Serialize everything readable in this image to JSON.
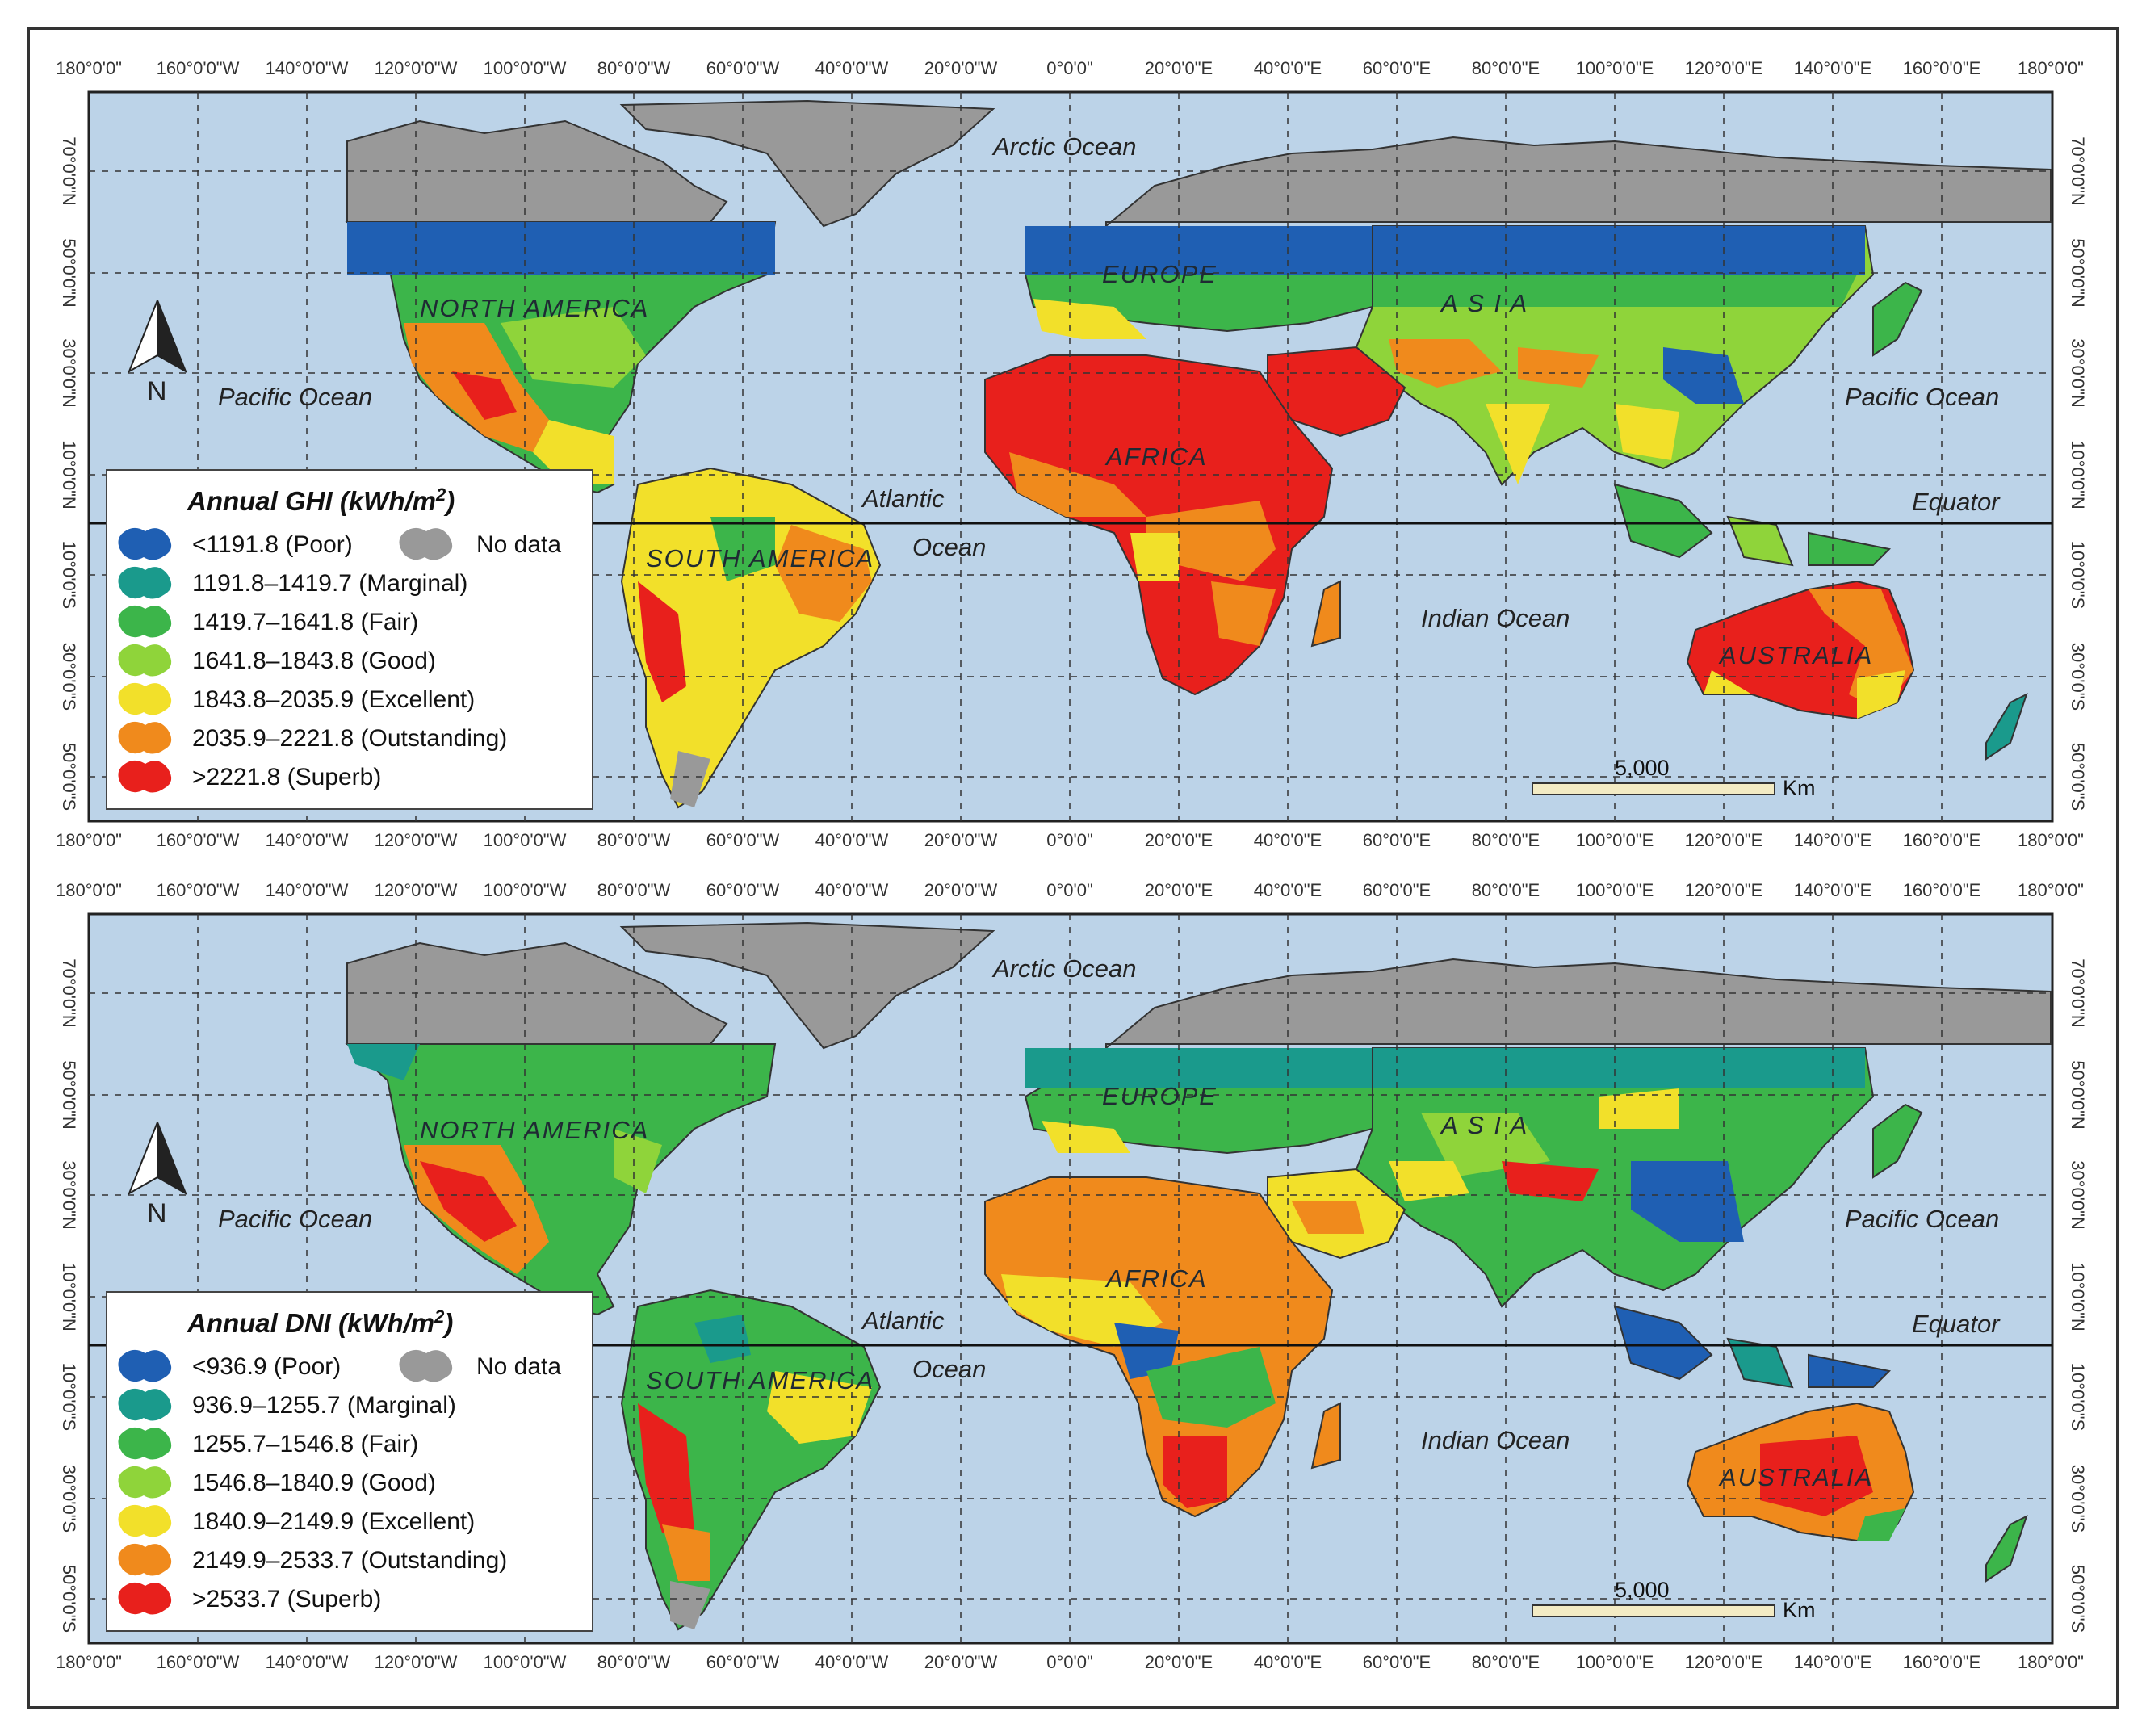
{
  "lon_ticks": [
    "180°0'0\"",
    "160°0'0\"W",
    "140°0'0\"W",
    "120°0'0\"W",
    "100°0'0\"W",
    "80°0'0\"W",
    "60°0'0\"W",
    "40°0'0\"W",
    "20°0'0\"W",
    "0°0'0\"",
    "20°0'0\"E",
    "40°0'0\"E",
    "60°0'0\"E",
    "80°0'0\"E",
    "100°0'0\"E",
    "120°0'0\"E",
    "140°0'0\"E",
    "160°0'0\"E",
    "180°0'0\""
  ],
  "lat_ticks": [
    "70°0'0\"N",
    "50°0'0\"N",
    "30°0'0\"N",
    "10°0'0\"N",
    "10°0'0\"S",
    "30°0'0\"S",
    "50°0'0\"S"
  ],
  "colors": {
    "ocean": "#bcd3e8",
    "no_data": "#999999",
    "poor": "#1f5fb3",
    "marginal": "#1a9a8c",
    "fair": "#3cb54a",
    "good": "#8fd43a",
    "excellent": "#f2e02a",
    "outstanding": "#f08a1c",
    "superb": "#e8201c"
  },
  "labels": {
    "arctic": "Arctic Ocean",
    "pacific_w": "Pacific Ocean",
    "pacific_e": "Pacific Ocean",
    "atlantic1": "Atlantic",
    "atlantic2": "Ocean",
    "indian": "Indian Ocean",
    "equator": "Equator",
    "north_america": "NORTH AMERICA",
    "south_america": "SOUTH AMERICA",
    "europe": "EUROPE",
    "asia": "A S I A",
    "africa": "AFRICA",
    "australia": "AUSTRALIA",
    "north": "N"
  },
  "scale_bar": {
    "value": "5,000",
    "unit": "Km"
  },
  "ghi": {
    "legend_title": "Annual GHI (kWh/m",
    "legend_title_sup": "2",
    "legend_title_end": ")",
    "no_data": "No data",
    "classes": [
      {
        "label": "<1191.8 (Poor)",
        "color_key": "poor"
      },
      {
        "label": "1191.8–1419.7 (Marginal)",
        "color_key": "marginal"
      },
      {
        "label": "1419.7–1641.8 (Fair)",
        "color_key": "fair"
      },
      {
        "label": "1641.8–1843.8 (Good)",
        "color_key": "good"
      },
      {
        "label": "1843.8–2035.9 (Excellent)",
        "color_key": "excellent"
      },
      {
        "label": "2035.9–2221.8 (Outstanding)",
        "color_key": "outstanding"
      },
      {
        "label": ">2221.8 (Superb)",
        "color_key": "superb"
      }
    ]
  },
  "dni": {
    "legend_title": "Annual DNI (kWh/m",
    "legend_title_sup": "2",
    "legend_title_end": ")",
    "no_data": "No data",
    "classes": [
      {
        "label": "<936.9 (Poor)",
        "color_key": "poor"
      },
      {
        "label": "936.9–1255.7 (Marginal)",
        "color_key": "marginal"
      },
      {
        "label": "1255.7–1546.8 (Fair)",
        "color_key": "fair"
      },
      {
        "label": "1546.8–1840.9 (Good)",
        "color_key": "good"
      },
      {
        "label": "1840.9–2149.9 (Excellent)",
        "color_key": "excellent"
      },
      {
        "label": "2149.9–2533.7 (Outstanding)",
        "color_key": "outstanding"
      },
      {
        "label": ">2533.7 (Superb)",
        "color_key": "superb"
      }
    ]
  }
}
